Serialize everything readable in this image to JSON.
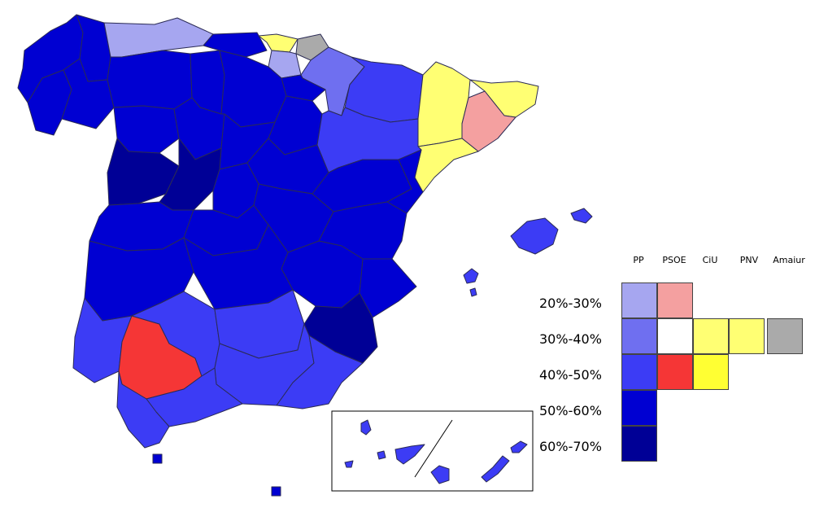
{
  "legend": {
    "parties": [
      "PP",
      "PSOE",
      "CiU",
      "PNV",
      "Amaiur"
    ],
    "ranges": [
      "20%-30%",
      "30%-40%",
      "40%-50%",
      "50%-60%",
      "60%-70%"
    ],
    "colors": {
      "PP": [
        "#a6a6f0",
        "#6f6ff0",
        "#3c3cf5",
        "#0000d2",
        "#000096"
      ],
      "PSOE": [
        "#f4a0a0",
        "#ffffff",
        "#f53636"
      ],
      "CiU": [
        "#ffff73",
        "#ffff33"
      ],
      "PNV": [
        "#ffff73"
      ],
      "Amaiur": [
        "#aaaaaa"
      ]
    }
  },
  "map": {
    "colors": {
      "pp_20_30": "#a6a6f0",
      "pp_30_40": "#6f6ff0",
      "pp_40_50": "#3c3cf5",
      "pp_50_60": "#0000d2",
      "pp_60_70": "#000096",
      "psoe_20_30": "#f4a0a0",
      "psoe_40_50": "#f53636",
      "ciu_30_40": "#ffff73",
      "amaiur_30_40": "#aaaaaa"
    }
  }
}
